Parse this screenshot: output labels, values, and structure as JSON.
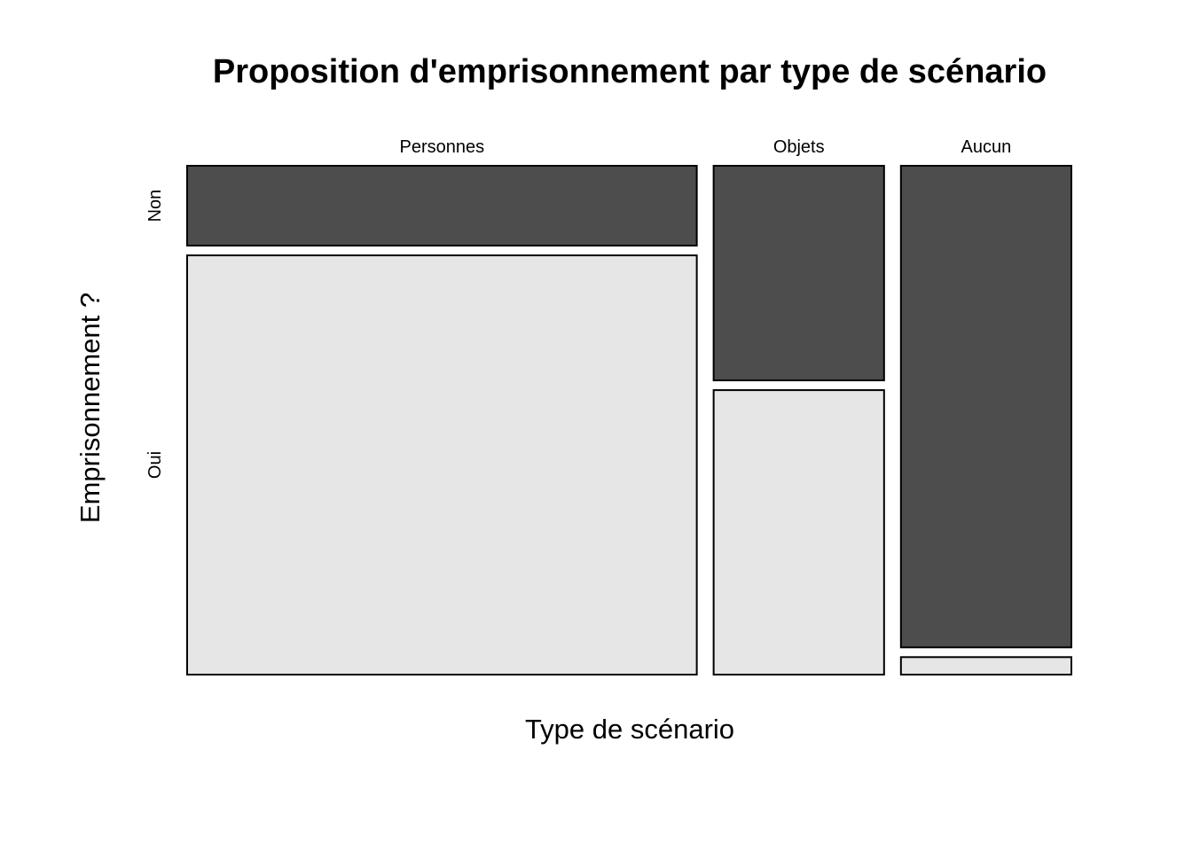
{
  "chart_data": {
    "type": "mosaic",
    "title": "Proposition d'emprisonnement par type de scénario",
    "xlabel": "Type de scénario",
    "ylabel": "Emprisonnement ?",
    "categories": [
      "Personnes",
      "Objets",
      "Aucun"
    ],
    "category_shares": [
      0.598,
      0.2,
      0.2
    ],
    "levels": [
      "Non",
      "Oui"
    ],
    "proportions": [
      {
        "category": "Personnes",
        "Non": 0.16,
        "Oui": 0.84
      },
      {
        "category": "Objets",
        "Non": 0.43,
        "Oui": 0.57
      },
      {
        "category": "Aucun",
        "Non": 0.965,
        "Oui": 0.035
      }
    ],
    "colors": {
      "Non": "#4d4d4d",
      "Oui": "#e6e6e6"
    },
    "grid": false,
    "legend": "none"
  }
}
